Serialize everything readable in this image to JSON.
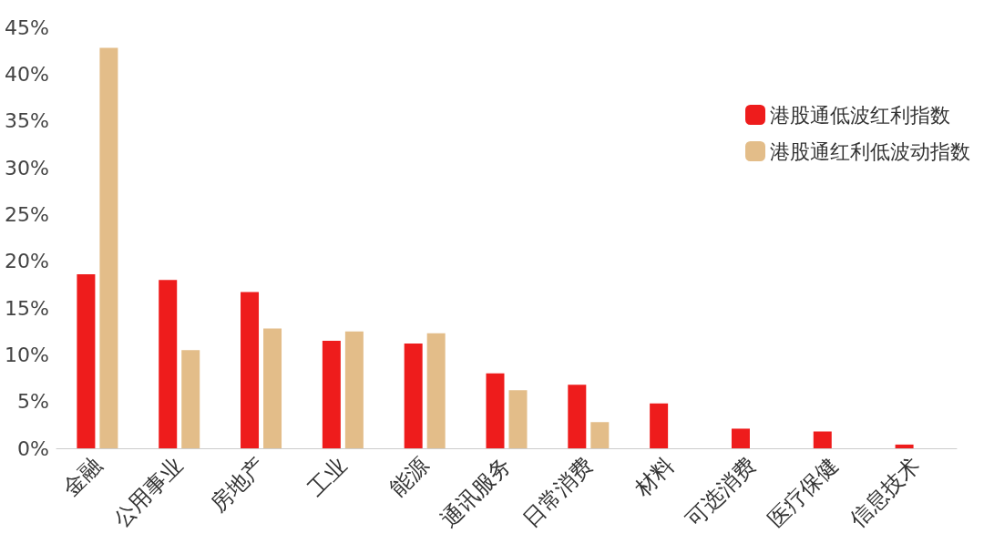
{
  "chart_data": {
    "type": "bar",
    "categories": [
      "金融",
      "公用事业",
      "房地产",
      "工业",
      "能源",
      "通讯服务",
      "日常消费",
      "材料",
      "可选消费",
      "医疗保健",
      "信息技术"
    ],
    "series": [
      {
        "name": "港股通低波红利指数",
        "color": "#ee1c1c",
        "values": [
          18.6,
          18.0,
          16.7,
          11.5,
          11.2,
          8.0,
          6.8,
          4.8,
          2.1,
          1.8,
          0.4
        ]
      },
      {
        "name": "港股通红利低波动指数",
        "color": "#e3bd89",
        "values": [
          42.8,
          10.5,
          12.8,
          12.5,
          12.3,
          6.2,
          2.8,
          null,
          null,
          null,
          null
        ]
      }
    ],
    "ylim": [
      0,
      45
    ],
    "yticks": [
      {
        "value": 0,
        "label": "0%"
      },
      {
        "value": 5,
        "label": "5%"
      },
      {
        "value": 10,
        "label": "10%"
      },
      {
        "value": 15,
        "label": "15%"
      },
      {
        "value": 20,
        "label": "20%"
      },
      {
        "value": 25,
        "label": "25%"
      },
      {
        "value": 30,
        "label": "30%"
      },
      {
        "value": 35,
        "label": "35%"
      },
      {
        "value": 40,
        "label": "40%"
      },
      {
        "value": 45,
        "label": "45%"
      }
    ],
    "grid": false,
    "legend": "top right"
  }
}
